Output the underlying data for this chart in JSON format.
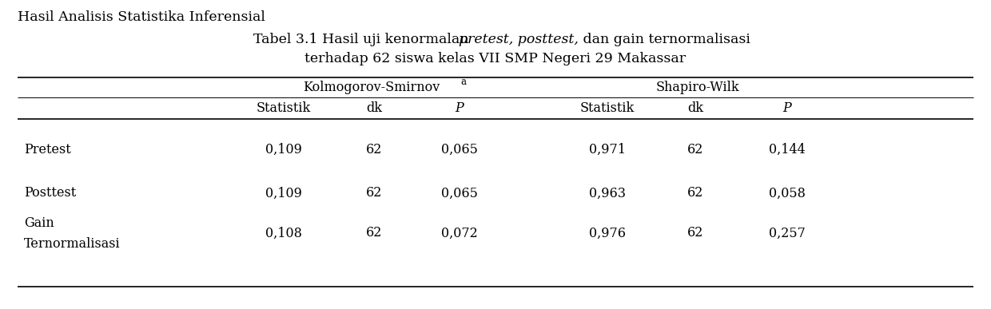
{
  "title_line1": "Hasil Analisis Statistika Inferensial",
  "title_line2_prefix": "Tabel 3.1 Hasil uji kenormalan ",
  "title_line2_italic": "pretest, posttest,",
  "title_line2_suffix": " dan gain ternormalisasi",
  "title_line3": "terhadap 62 siswa kelas VII SMP Negeri 29 Makassar",
  "col_group1": "Kolmogorov-Smirnov",
  "col_group1_super": "a",
  "col_group2": "Shapiro-Wilk",
  "sub_cols": [
    "Statistik",
    "dk",
    "P",
    "Statistik",
    "dk",
    "P"
  ],
  "row_label_1": "Pretest",
  "row_label_2": "Posttest",
  "row_label_3a": "Gain",
  "row_label_3b": "Ternormalisasi",
  "data": [
    [
      "0,109",
      "62",
      "0,065",
      "0,971",
      "62",
      "0,144"
    ],
    [
      "0,109",
      "62",
      "0,065",
      "0,963",
      "62",
      "0,058"
    ],
    [
      "0,108",
      "62",
      "0,072",
      "0,976",
      "62",
      "0,257"
    ]
  ],
  "bg_color": "#ffffff",
  "text_color": "#000000",
  "font_size": 11.5,
  "title_font_size": 12.5,
  "small_title_font_size": 11.5
}
